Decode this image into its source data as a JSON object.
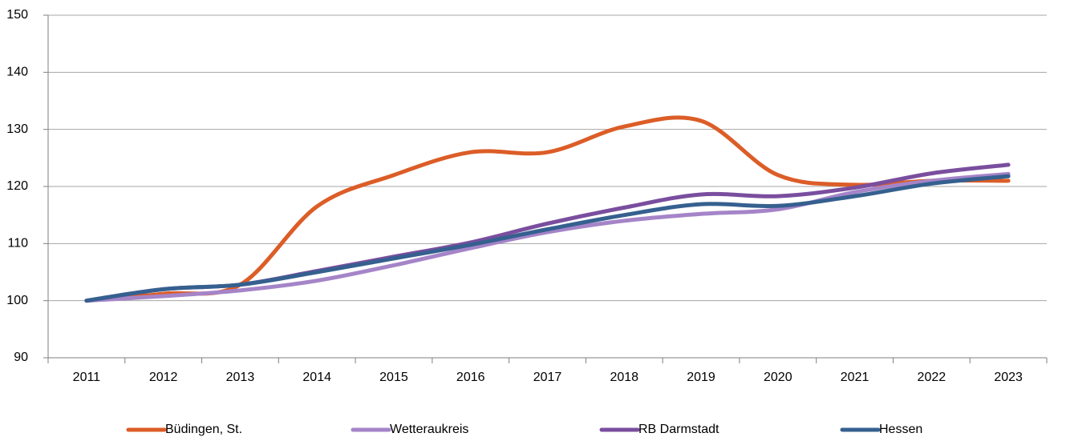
{
  "chart_data": {
    "type": "line",
    "categories": [
      "2011",
      "2012",
      "2013",
      "2014",
      "2015",
      "2016",
      "2017",
      "2018",
      "2019",
      "2020",
      "2021",
      "2022",
      "2023"
    ],
    "series": [
      {
        "name": "Büdingen, St.",
        "color": "#dc5d27",
        "values": [
          100,
          101.2,
          102.8,
          116.5,
          122,
          126,
          126,
          130.5,
          131.5,
          122,
          120.3,
          121,
          121
        ]
      },
      {
        "name": "Wetteraukreis",
        "color": "#a584c8",
        "values": [
          100,
          100.8,
          101.8,
          103.5,
          106.2,
          109.2,
          112,
          114,
          115.2,
          116,
          119,
          121,
          122.2
        ]
      },
      {
        "name": "RB Darmstadt",
        "color": "#7a4e9e",
        "values": [
          100,
          102,
          102.8,
          105.2,
          107.7,
          110.2,
          113.5,
          116.3,
          118.6,
          118.3,
          119.8,
          122.3,
          123.8
        ]
      },
      {
        "name": "Hessen",
        "color": "#35608f",
        "values": [
          100,
          102,
          102.8,
          105,
          107.4,
          109.8,
          112.5,
          115,
          116.9,
          116.6,
          118.3,
          120.5,
          121.8
        ]
      }
    ],
    "ylim": [
      90,
      150
    ],
    "yticks": [
      90,
      100,
      110,
      120,
      130,
      140,
      150
    ],
    "grid": true,
    "smooth": true,
    "legend": "bottom"
  }
}
